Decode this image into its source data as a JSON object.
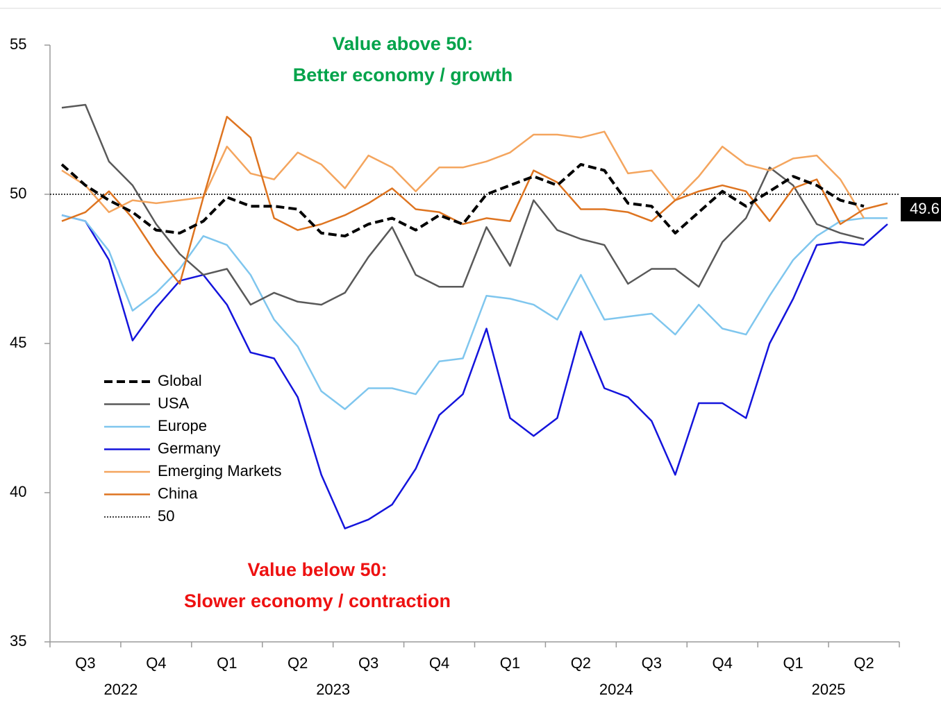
{
  "chart_data": {
    "type": "line",
    "categories": [
      null,
      "Q3",
      null,
      null,
      "Q4",
      null,
      null,
      "Q1",
      null,
      null,
      "Q2",
      null,
      null,
      "Q3",
      null,
      null,
      "Q4",
      null,
      null,
      "Q1",
      null,
      null,
      "Q2",
      null,
      null,
      "Q3",
      null,
      null,
      "Q4",
      null,
      null,
      "Q1",
      null,
      null,
      "Q2",
      null
    ],
    "years": [
      "2022",
      "2023",
      "2024",
      "2025"
    ],
    "ylim": [
      35,
      55
    ],
    "yticks": [
      35,
      40,
      45,
      50,
      55
    ],
    "series": [
      {
        "name": "Global",
        "color": "#000000",
        "style": "dashed",
        "values": [
          51.0,
          50.3,
          49.8,
          49.4,
          48.8,
          48.7,
          49.1,
          49.9,
          49.6,
          49.6,
          49.5,
          48.7,
          48.6,
          49.0,
          49.2,
          48.8,
          49.3,
          49.0,
          50.0,
          50.3,
          50.6,
          50.3,
          51.0,
          50.8,
          49.7,
          49.6,
          48.7,
          49.4,
          50.1,
          49.6,
          50.1,
          50.6,
          50.3,
          49.8,
          49.6,
          null
        ]
      },
      {
        "name": "USA",
        "color": "#595959",
        "style": "solid",
        "values": [
          52.9,
          53.0,
          51.1,
          50.3,
          49.0,
          48.0,
          47.3,
          47.5,
          46.3,
          46.7,
          46.4,
          46.3,
          46.7,
          47.9,
          48.9,
          47.3,
          46.9,
          46.9,
          48.9,
          47.6,
          49.8,
          48.8,
          48.5,
          48.3,
          47.0,
          47.5,
          47.5,
          46.9,
          48.4,
          49.2,
          50.9,
          50.3,
          49.0,
          48.7,
          48.5,
          null
        ]
      },
      {
        "name": "Europe",
        "color": "#7fc6ee",
        "style": "solid",
        "values": [
          49.3,
          49.1,
          48.1,
          46.1,
          46.7,
          47.5,
          48.6,
          48.3,
          47.3,
          45.8,
          44.9,
          43.4,
          42.8,
          43.5,
          43.5,
          43.3,
          44.4,
          44.5,
          46.6,
          46.5,
          46.3,
          45.8,
          47.3,
          45.8,
          45.9,
          46.0,
          45.3,
          46.3,
          45.5,
          45.3,
          46.6,
          47.8,
          48.6,
          49.1,
          49.2,
          49.2
        ]
      },
      {
        "name": "Germany",
        "color": "#1414dc",
        "style": "solid",
        "values": [
          49.3,
          49.1,
          47.8,
          45.1,
          46.2,
          47.1,
          47.3,
          46.3,
          44.7,
          44.5,
          43.2,
          40.6,
          38.8,
          39.1,
          39.6,
          40.8,
          42.6,
          43.3,
          45.5,
          42.5,
          41.9,
          42.5,
          45.4,
          43.5,
          43.2,
          42.4,
          40.6,
          43.0,
          43.0,
          42.5,
          45.0,
          46.5,
          48.3,
          48.4,
          48.3,
          49.0
        ]
      },
      {
        "name": "Emerging Markets",
        "color": "#f4a55e",
        "style": "solid",
        "values": [
          50.8,
          50.3,
          49.4,
          49.8,
          49.7,
          49.8,
          49.9,
          51.6,
          50.7,
          50.5,
          51.4,
          51.0,
          50.2,
          51.3,
          50.9,
          50.1,
          50.9,
          50.9,
          51.1,
          51.4,
          52.0,
          52.0,
          51.9,
          52.1,
          50.7,
          50.8,
          49.8,
          50.6,
          51.6,
          51.0,
          50.8,
          51.2,
          51.3,
          50.5,
          49.2,
          null
        ]
      },
      {
        "name": "China",
        "color": "#de7420",
        "style": "solid",
        "values": [
          49.1,
          49.4,
          50.1,
          49.2,
          48.0,
          47.0,
          49.9,
          52.6,
          51.9,
          49.2,
          48.8,
          49.0,
          49.3,
          49.7,
          50.2,
          49.5,
          49.4,
          49.0,
          49.2,
          49.1,
          50.8,
          50.4,
          49.5,
          49.5,
          49.4,
          49.1,
          49.8,
          50.1,
          50.3,
          50.1,
          49.1,
          50.2,
          50.5,
          49.0,
          49.5,
          49.7
        ]
      }
    ],
    "hlines": [
      {
        "name": "50",
        "value": 50,
        "color": "#000000",
        "style": "dotted"
      }
    ],
    "annotations": [
      {
        "lines": [
          "Value above 50:",
          "Better economy / growth"
        ],
        "color": "#00a34a"
      },
      {
        "lines": [
          "Value below 50:",
          "Slower economy / contraction"
        ],
        "color": "#ee1111"
      }
    ],
    "end_label": "49.6"
  }
}
